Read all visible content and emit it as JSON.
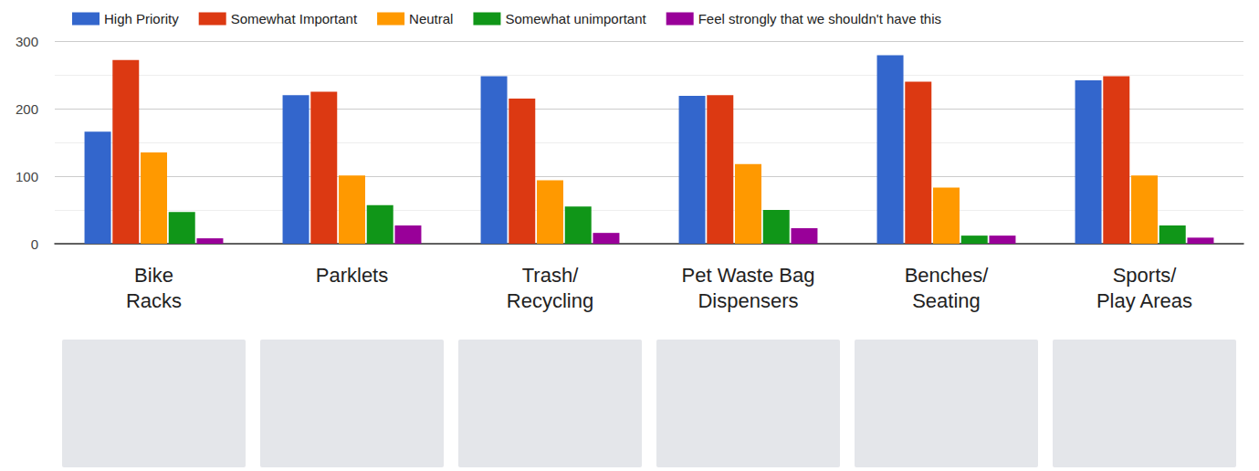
{
  "chart_data": {
    "type": "bar",
    "categories": [
      "Bike Racks",
      "Parklets",
      "Trash/Recycling",
      "Pet Waste Bag Dispensers",
      "Benches/Seating",
      "Sports/Play Areas"
    ],
    "series": [
      {
        "name": "High Priority",
        "color": "#3366cc",
        "values": [
          166,
          220,
          248,
          219,
          279,
          242
        ]
      },
      {
        "name": "Somewhat Important",
        "color": "#dc3912",
        "values": [
          272,
          225,
          215,
          220,
          240,
          248
        ]
      },
      {
        "name": "Neutral",
        "color": "#ff9900",
        "values": [
          135,
          101,
          94,
          118,
          83,
          101
        ]
      },
      {
        "name": "Somewhat unimportant",
        "color": "#109618",
        "values": [
          47,
          57,
          55,
          50,
          12,
          27
        ]
      },
      {
        "name": "Feel strongly that we shouldn't have this",
        "color": "#990099",
        "values": [
          8,
          27,
          16,
          23,
          12,
          9
        ]
      }
    ],
    "ylim": [
      0,
      300
    ],
    "yticks": [
      0,
      100,
      200,
      300
    ],
    "grid": true,
    "legend": "top"
  }
}
